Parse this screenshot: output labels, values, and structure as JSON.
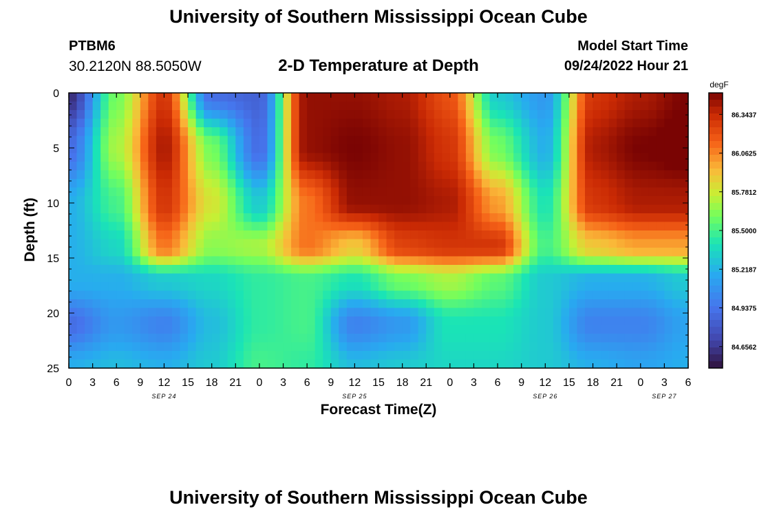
{
  "header": {
    "title": "University of Southern Mississippi Ocean Cube",
    "station": "PTBM6",
    "coordinates": "30.2120N  88.5050W",
    "plot_title": "2-D Temperature at Depth",
    "model_start_label": "Model Start Time",
    "model_start_value": "09/24/2022 Hour 21"
  },
  "footer": {
    "title": "University of Southern Mississippi Ocean Cube"
  },
  "chart_data": {
    "type": "heatmap",
    "xlabel": "Forecast Time(Z)",
    "ylabel": "Depth (ft)",
    "x_ticks": [
      "0",
      "3",
      "6",
      "9",
      "12",
      "15",
      "18",
      "21",
      "0",
      "3",
      "6",
      "9",
      "12",
      "15",
      "18",
      "21",
      "0",
      "3",
      "6",
      "9",
      "12",
      "15",
      "18",
      "21",
      "0",
      "3",
      "6"
    ],
    "date_labels": [
      {
        "label": "SEP 24",
        "tick_index": 4
      },
      {
        "label": "SEP 25",
        "tick_index": 12
      },
      {
        "label": "SEP 26",
        "tick_index": 20
      },
      {
        "label": "SEP 27",
        "tick_index": 25
      }
    ],
    "y_ticks": [
      0,
      5,
      10,
      15,
      20,
      25
    ],
    "ylim": [
      25,
      0
    ],
    "xlim_hours": [
      0,
      78
    ],
    "colorbar": {
      "unit": "degF",
      "range": [
        84.5,
        86.5
      ],
      "ticks": [
        "86.3437",
        "86.0625",
        "85.7812",
        "85.5000",
        "85.2187",
        "84.9375",
        "84.6562"
      ]
    },
    "temperature_grid": {
      "columns_hours": [
        0,
        6,
        12,
        18,
        24,
        30,
        36,
        42,
        48,
        54,
        60,
        66,
        72,
        78
      ],
      "rows_depth_ft": [
        0,
        5,
        10,
        14,
        17,
        21,
        25
      ],
      "values_degF": [
        [
          84.6,
          85.6,
          86.3,
          84.9,
          84.85,
          86.45,
          86.45,
          86.4,
          86.2,
          85.3,
          85.1,
          86.3,
          86.4,
          86.5
        ],
        [
          84.9,
          85.7,
          86.4,
          85.6,
          84.9,
          86.45,
          86.5,
          86.45,
          86.3,
          85.6,
          85.2,
          86.4,
          86.5,
          86.55
        ],
        [
          85.2,
          85.5,
          86.3,
          85.8,
          85.3,
          86.1,
          86.45,
          86.45,
          86.4,
          86.0,
          85.4,
          86.3,
          86.4,
          86.4
        ],
        [
          85.2,
          85.35,
          86.1,
          85.65,
          85.7,
          86.1,
          85.9,
          86.25,
          86.3,
          86.3,
          85.5,
          85.9,
          86.0,
          86.0
        ],
        [
          85.2,
          85.2,
          85.3,
          85.35,
          85.45,
          85.5,
          85.4,
          85.6,
          85.7,
          85.55,
          85.3,
          85.2,
          85.2,
          85.3
        ],
        [
          84.9,
          85.1,
          85.0,
          85.25,
          85.45,
          85.5,
          85.0,
          85.1,
          85.4,
          85.4,
          85.3,
          85.0,
          85.0,
          85.15
        ],
        [
          85.2,
          85.25,
          85.2,
          85.3,
          85.5,
          85.45,
          85.25,
          85.3,
          85.35,
          85.35,
          85.3,
          85.2,
          85.15,
          85.2
        ]
      ]
    }
  }
}
